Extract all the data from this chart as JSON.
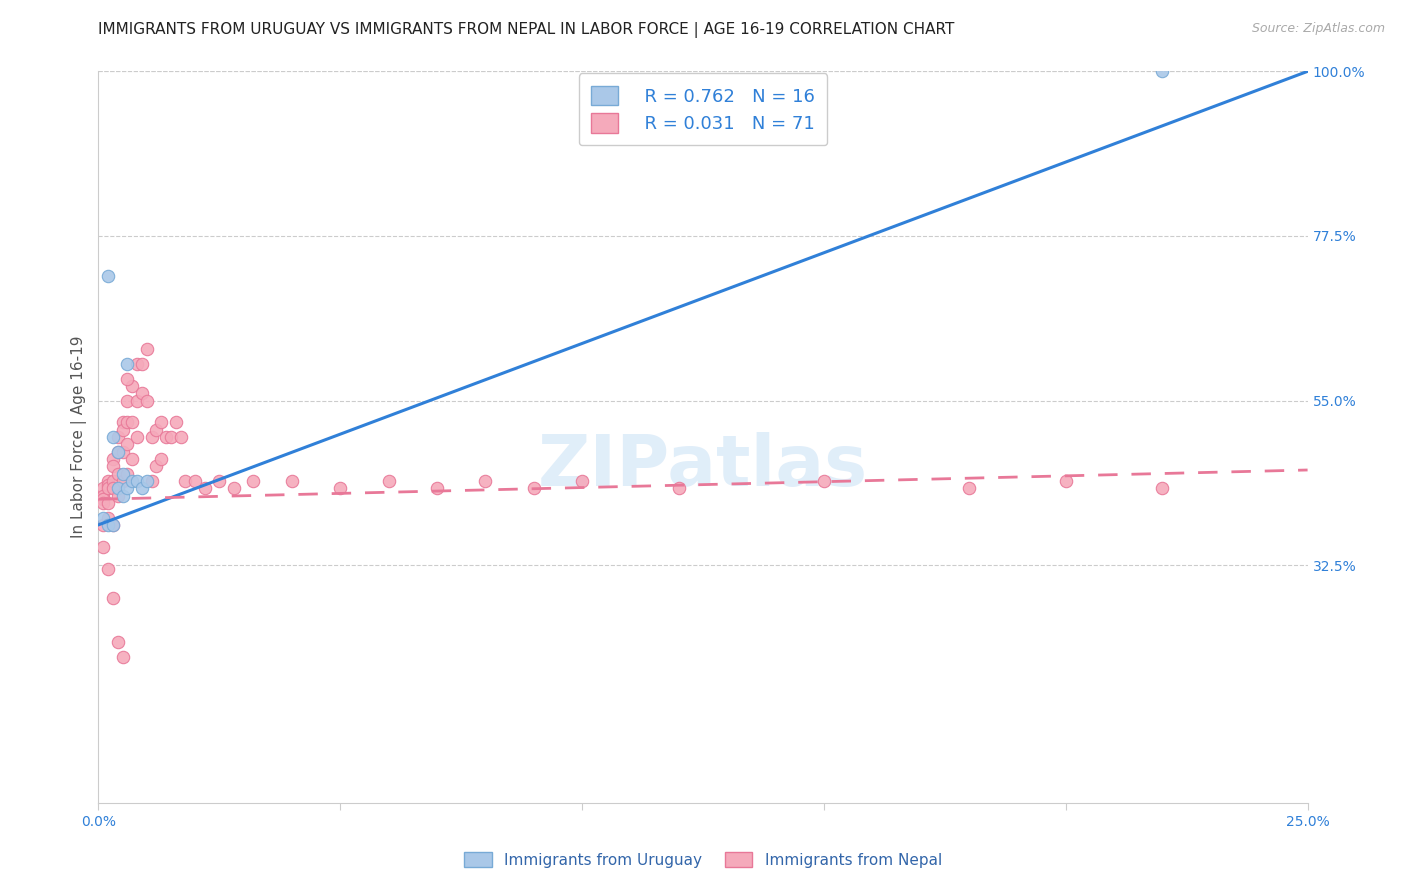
{
  "title": "IMMIGRANTS FROM URUGUAY VS IMMIGRANTS FROM NEPAL IN LABOR FORCE | AGE 16-19 CORRELATION CHART",
  "source": "Source: ZipAtlas.com",
  "ylabel": "In Labor Force | Age 16-19",
  "xlim": [
    0.0,
    0.25
  ],
  "ylim": [
    0.0,
    1.0
  ],
  "xtick_positions": [
    0.0,
    0.05,
    0.1,
    0.15,
    0.2,
    0.25
  ],
  "xtick_labels": [
    "0.0%",
    "",
    "",
    "",
    "",
    "25.0%"
  ],
  "yticks_right": [
    0.325,
    0.55,
    0.775,
    1.0
  ],
  "yticklabels_right": [
    "32.5%",
    "55.0%",
    "77.5%",
    "100.0%"
  ],
  "uruguay_color": "#aac8e8",
  "uruguay_edge": "#78aad6",
  "nepal_color": "#f5aabb",
  "nepal_edge": "#e87898",
  "uruguay_line_color": "#3080d8",
  "nepal_line_color": "#e87898",
  "R_uruguay": 0.762,
  "N_uruguay": 16,
  "R_nepal": 0.031,
  "N_nepal": 71,
  "watermark": "ZIPatlas",
  "legend_label_uruguay": "Immigrants from Uruguay",
  "legend_label_nepal": "Immigrants from Nepal",
  "uruguay_x": [
    0.001,
    0.002,
    0.002,
    0.003,
    0.003,
    0.004,
    0.004,
    0.005,
    0.005,
    0.006,
    0.006,
    0.007,
    0.008,
    0.009,
    0.01,
    0.22
  ],
  "uruguay_y": [
    0.39,
    0.38,
    0.72,
    0.5,
    0.38,
    0.48,
    0.43,
    0.45,
    0.42,
    0.6,
    0.43,
    0.44,
    0.44,
    0.43,
    0.44,
    1.0
  ],
  "nepal_x": [
    0.001,
    0.001,
    0.001,
    0.001,
    0.001,
    0.002,
    0.002,
    0.002,
    0.002,
    0.002,
    0.003,
    0.003,
    0.003,
    0.003,
    0.003,
    0.004,
    0.004,
    0.004,
    0.004,
    0.005,
    0.005,
    0.005,
    0.005,
    0.006,
    0.006,
    0.006,
    0.006,
    0.007,
    0.007,
    0.007,
    0.008,
    0.008,
    0.008,
    0.009,
    0.009,
    0.01,
    0.01,
    0.011,
    0.011,
    0.012,
    0.012,
    0.013,
    0.013,
    0.014,
    0.015,
    0.016,
    0.017,
    0.018,
    0.02,
    0.022,
    0.025,
    0.028,
    0.032,
    0.04,
    0.05,
    0.06,
    0.07,
    0.08,
    0.09,
    0.1,
    0.12,
    0.15,
    0.18,
    0.2,
    0.22,
    0.001,
    0.002,
    0.003,
    0.004,
    0.005,
    0.006
  ],
  "nepal_y": [
    0.43,
    0.42,
    0.415,
    0.41,
    0.38,
    0.44,
    0.435,
    0.43,
    0.41,
    0.39,
    0.47,
    0.46,
    0.44,
    0.43,
    0.38,
    0.5,
    0.48,
    0.45,
    0.42,
    0.52,
    0.51,
    0.48,
    0.44,
    0.55,
    0.52,
    0.49,
    0.45,
    0.57,
    0.52,
    0.47,
    0.6,
    0.55,
    0.5,
    0.6,
    0.56,
    0.62,
    0.55,
    0.5,
    0.44,
    0.51,
    0.46,
    0.52,
    0.47,
    0.5,
    0.5,
    0.52,
    0.5,
    0.44,
    0.44,
    0.43,
    0.44,
    0.43,
    0.44,
    0.44,
    0.43,
    0.44,
    0.43,
    0.44,
    0.43,
    0.44,
    0.43,
    0.44,
    0.43,
    0.44,
    0.43,
    0.35,
    0.32,
    0.28,
    0.22,
    0.2,
    0.58
  ],
  "blue_trend_x": [
    0.0,
    0.25
  ],
  "blue_trend_y": [
    0.38,
    1.0
  ],
  "pink_trend_x": [
    0.0,
    0.25
  ],
  "pink_trend_y": [
    0.415,
    0.455
  ],
  "background_color": "#ffffff",
  "grid_color": "#cccccc",
  "title_fontsize": 11,
  "ylabel_fontsize": 11,
  "tick_fontsize": 10,
  "marker_size": 80
}
